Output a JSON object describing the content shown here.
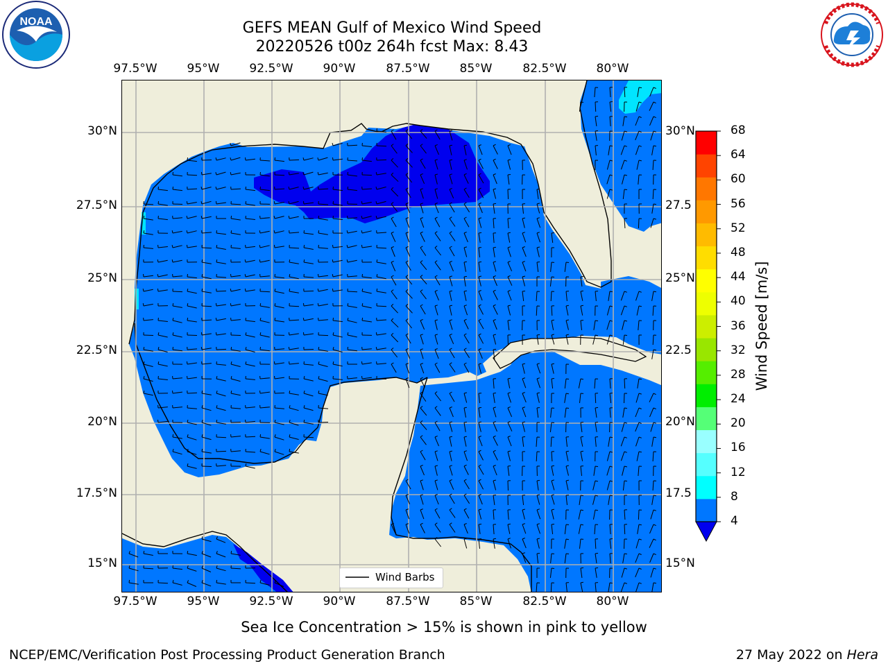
{
  "header": {
    "title_line1": "GEFS MEAN Gulf of Mexico Wind Speed",
    "title_line2": "20220526 t00z 264h fcst   Max: 8.43"
  },
  "logos": {
    "noaa": {
      "text": "NOAA",
      "ring_text": "NATIONAL OCEANIC AND ATMOSPHERIC ADMINISTRATION · U.S. DEPARTMENT OF COMMERCE"
    },
    "nws": {
      "ring_text": "NATIONAL WEATHER SERVICE"
    }
  },
  "map": {
    "lon_ticks": [
      "97.5°W",
      "95°W",
      "92.5°W",
      "90°W",
      "87.5°W",
      "85°W",
      "82.5°W",
      "80°W"
    ],
    "lat_ticks_left": [
      "30°N",
      "27.5°N",
      "25°N",
      "22.5°N",
      "20°N",
      "17.5°N",
      "15°N"
    ],
    "lat_ticks_right": [
      "30°N",
      "27.5",
      "25°N",
      "22.5",
      "20°N",
      "17.5",
      "15°N"
    ],
    "lon_range": [
      -98,
      -78.2
    ],
    "lat_range": [
      14.0,
      31.7
    ],
    "legend_label": "Wind Barbs",
    "colors": {
      "land": "#efeedb",
      "ocean_4_8": "#0077ff",
      "ocean_lt4": "#0000ee",
      "ocean_8_12": "#00e5ff"
    }
  },
  "colorbar": {
    "label": "Wind Speed [m/s]",
    "ticks": [
      "68",
      "64",
      "60",
      "56",
      "52",
      "48",
      "44",
      "40",
      "36",
      "32",
      "28",
      "24",
      "20",
      "16",
      "12",
      "8",
      "4"
    ],
    "colors_bottom_to_top": [
      "#0077ff",
      "#00ffff",
      "#55ffff",
      "#99ffff",
      "#55ff77",
      "#00ee00",
      "#55ee00",
      "#99e600",
      "#ccee00",
      "#eeff00",
      "#ffff00",
      "#ffdd00",
      "#ffbb00",
      "#ff9900",
      "#ff7700",
      "#ff4400",
      "#ff0000"
    ],
    "under_color": "#0000ee"
  },
  "footer": {
    "sea_ice_note": "Sea Ice Concentration > 15% is shown in pink to yellow",
    "left": "NCEP/EMC/Verification Post Processing Product Generation Branch",
    "right_date": "27 May 2022 on",
    "right_host": "Hera"
  }
}
